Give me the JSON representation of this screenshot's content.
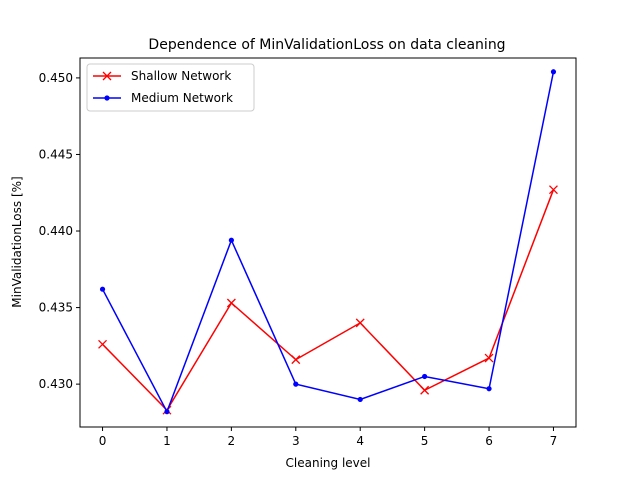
{
  "chart_data": {
    "type": "line",
    "title": "Dependence of MinValidationLoss on data cleaning",
    "xlabel": "Cleaning level",
    "ylabel": "MinValidationLoss [%]",
    "x": [
      0,
      1,
      2,
      3,
      4,
      5,
      6,
      7
    ],
    "xlim": [
      -0.35,
      7.35
    ],
    "ylim": [
      0.4272,
      0.4513
    ],
    "xticks": [
      0,
      1,
      2,
      3,
      4,
      5,
      6,
      7
    ],
    "xtick_labels": [
      "0",
      "1",
      "2",
      "3",
      "4",
      "5",
      "6",
      "7"
    ],
    "yticks": [
      0.43,
      0.435,
      0.44,
      0.445,
      0.45
    ],
    "ytick_labels": [
      "0.430",
      "0.435",
      "0.440",
      "0.445",
      "0.450"
    ],
    "grid": false,
    "legend_position": "top-left",
    "series": [
      {
        "name": "Shallow Network",
        "color": "#ff0000",
        "marker": "x",
        "values": [
          0.4326,
          0.4283,
          0.4353,
          0.4316,
          0.434,
          0.4296,
          0.4317,
          0.4427
        ]
      },
      {
        "name": "Medium Network",
        "color": "#0000ff",
        "marker": "dot",
        "values": [
          0.4362,
          0.4282,
          0.4394,
          0.43,
          0.429,
          0.4305,
          0.4297,
          0.4504
        ]
      }
    ]
  }
}
